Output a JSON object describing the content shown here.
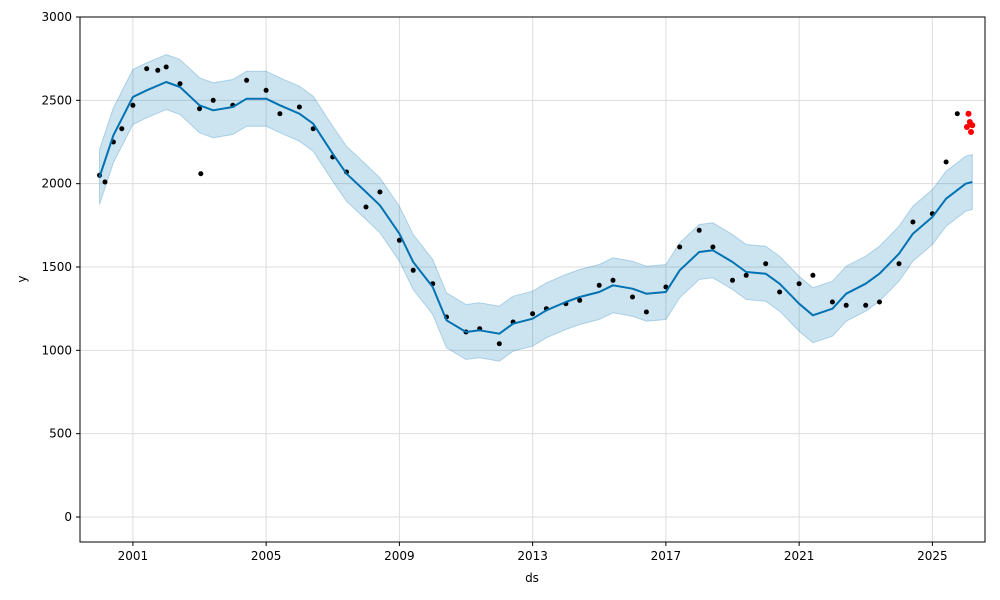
{
  "chart_data": {
    "type": "line",
    "title": "",
    "xlabel": "ds",
    "ylabel": "y",
    "xlim": [
      "1999-06-01",
      "2026-08-01"
    ],
    "ylim": [
      -150,
      3000
    ],
    "x_ticks": [
      {
        "date": "2001-01-01",
        "label": "2001"
      },
      {
        "date": "2005-01-01",
        "label": "2005"
      },
      {
        "date": "2009-01-01",
        "label": "2009"
      },
      {
        "date": "2013-01-01",
        "label": "2013"
      },
      {
        "date": "2017-01-01",
        "label": "2017"
      },
      {
        "date": "2021-01-01",
        "label": "2021"
      },
      {
        "date": "2025-01-01",
        "label": "2025"
      }
    ],
    "y_ticks": [
      0,
      500,
      1000,
      1500,
      2000,
      2500,
      3000
    ],
    "grid": true,
    "colors": {
      "forecast_line": "#0072B2",
      "interval_fill": "#0072B2",
      "observed_points": "#000000",
      "highlight_points": "#ff0000",
      "grid": "#dddddd"
    },
    "series": [
      {
        "role": "forecast",
        "points": [
          [
            "2000-01-01",
            2040
          ],
          [
            "2000-06-01",
            2290
          ],
          [
            "2001-01-01",
            2520
          ],
          [
            "2001-06-01",
            2560
          ],
          [
            "2002-01-01",
            2610
          ],
          [
            "2002-06-01",
            2580
          ],
          [
            "2003-01-01",
            2470
          ],
          [
            "2003-06-01",
            2440
          ],
          [
            "2004-01-01",
            2460
          ],
          [
            "2004-06-01",
            2510
          ],
          [
            "2005-01-01",
            2510
          ],
          [
            "2005-06-01",
            2470
          ],
          [
            "2006-01-01",
            2420
          ],
          [
            "2006-06-01",
            2360
          ],
          [
            "2007-01-01",
            2180
          ],
          [
            "2007-06-01",
            2060
          ],
          [
            "2008-01-01",
            1950
          ],
          [
            "2008-06-01",
            1870
          ],
          [
            "2009-01-01",
            1700
          ],
          [
            "2009-06-01",
            1530
          ],
          [
            "2010-01-01",
            1380
          ],
          [
            "2010-06-01",
            1180
          ],
          [
            "2011-01-01",
            1110
          ],
          [
            "2011-06-01",
            1120
          ],
          [
            "2012-01-01",
            1100
          ],
          [
            "2012-06-01",
            1160
          ],
          [
            "2013-01-01",
            1190
          ],
          [
            "2013-06-01",
            1240
          ],
          [
            "2014-01-01",
            1290
          ],
          [
            "2014-06-01",
            1320
          ],
          [
            "2015-01-01",
            1350
          ],
          [
            "2015-06-01",
            1390
          ],
          [
            "2016-01-01",
            1370
          ],
          [
            "2016-06-01",
            1340
          ],
          [
            "2017-01-01",
            1350
          ],
          [
            "2017-06-01",
            1480
          ],
          [
            "2018-01-01",
            1590
          ],
          [
            "2018-06-01",
            1600
          ],
          [
            "2019-01-01",
            1530
          ],
          [
            "2019-06-01",
            1470
          ],
          [
            "2020-01-01",
            1460
          ],
          [
            "2020-06-01",
            1400
          ],
          [
            "2021-01-01",
            1280
          ],
          [
            "2021-06-01",
            1210
          ],
          [
            "2022-01-01",
            1250
          ],
          [
            "2022-06-01",
            1340
          ],
          [
            "2023-01-01",
            1400
          ],
          [
            "2023-06-01",
            1460
          ],
          [
            "2024-01-01",
            1580
          ],
          [
            "2024-06-01",
            1700
          ],
          [
            "2025-01-01",
            1800
          ],
          [
            "2025-06-01",
            1910
          ],
          [
            "2026-01-01",
            2000
          ],
          [
            "2026-03-15",
            2010
          ]
        ]
      },
      {
        "role": "observed",
        "points": [
          [
            "2000-01-01",
            2050
          ],
          [
            "2000-03-01",
            2010
          ],
          [
            "2000-06-01",
            2250
          ],
          [
            "2000-09-01",
            2330
          ],
          [
            "2001-01-01",
            2470
          ],
          [
            "2001-06-01",
            2690
          ],
          [
            "2001-10-01",
            2680
          ],
          [
            "2002-01-01",
            2700
          ],
          [
            "2002-06-01",
            2600
          ],
          [
            "2003-01-01",
            2450
          ],
          [
            "2003-01-15",
            2060
          ],
          [
            "2003-06-01",
            2500
          ],
          [
            "2004-01-01",
            2470
          ],
          [
            "2004-06-01",
            2620
          ],
          [
            "2005-01-01",
            2560
          ],
          [
            "2005-06-01",
            2420
          ],
          [
            "2006-01-01",
            2460
          ],
          [
            "2006-06-01",
            2330
          ],
          [
            "2007-01-01",
            2160
          ],
          [
            "2007-06-01",
            2070
          ],
          [
            "2008-01-01",
            1860
          ],
          [
            "2008-06-01",
            1950
          ],
          [
            "2009-01-01",
            1660
          ],
          [
            "2009-06-01",
            1480
          ],
          [
            "2010-01-01",
            1400
          ],
          [
            "2010-06-01",
            1200
          ],
          [
            "2011-01-01",
            1110
          ],
          [
            "2011-06-01",
            1130
          ],
          [
            "2012-01-01",
            1040
          ],
          [
            "2012-06-01",
            1170
          ],
          [
            "2013-01-01",
            1220
          ],
          [
            "2013-06-01",
            1250
          ],
          [
            "2014-01-01",
            1280
          ],
          [
            "2014-06-01",
            1300
          ],
          [
            "2015-01-01",
            1390
          ],
          [
            "2015-06-01",
            1420
          ],
          [
            "2016-01-01",
            1320
          ],
          [
            "2016-06-01",
            1230
          ],
          [
            "2017-01-01",
            1380
          ],
          [
            "2017-06-01",
            1620
          ],
          [
            "2018-01-01",
            1720
          ],
          [
            "2018-06-01",
            1620
          ],
          [
            "2019-01-01",
            1420
          ],
          [
            "2019-06-01",
            1450
          ],
          [
            "2020-01-01",
            1520
          ],
          [
            "2020-06-01",
            1350
          ],
          [
            "2021-01-01",
            1400
          ],
          [
            "2021-06-01",
            1450
          ],
          [
            "2022-01-01",
            1290
          ],
          [
            "2022-06-01",
            1270
          ],
          [
            "2023-01-01",
            1270
          ],
          [
            "2023-06-01",
            1290
          ],
          [
            "2024-01-01",
            1520
          ],
          [
            "2024-06-01",
            1770
          ],
          [
            "2025-01-01",
            1820
          ],
          [
            "2025-06-01",
            2130
          ],
          [
            "2025-10-01",
            2420
          ]
        ]
      },
      {
        "role": "highlight",
        "points": [
          [
            "2026-01-15",
            2340
          ],
          [
            "2026-02-01",
            2420
          ],
          [
            "2026-02-15",
            2370
          ],
          [
            "2026-03-01",
            2310
          ],
          [
            "2026-03-15",
            2350
          ]
        ]
      }
    ]
  }
}
